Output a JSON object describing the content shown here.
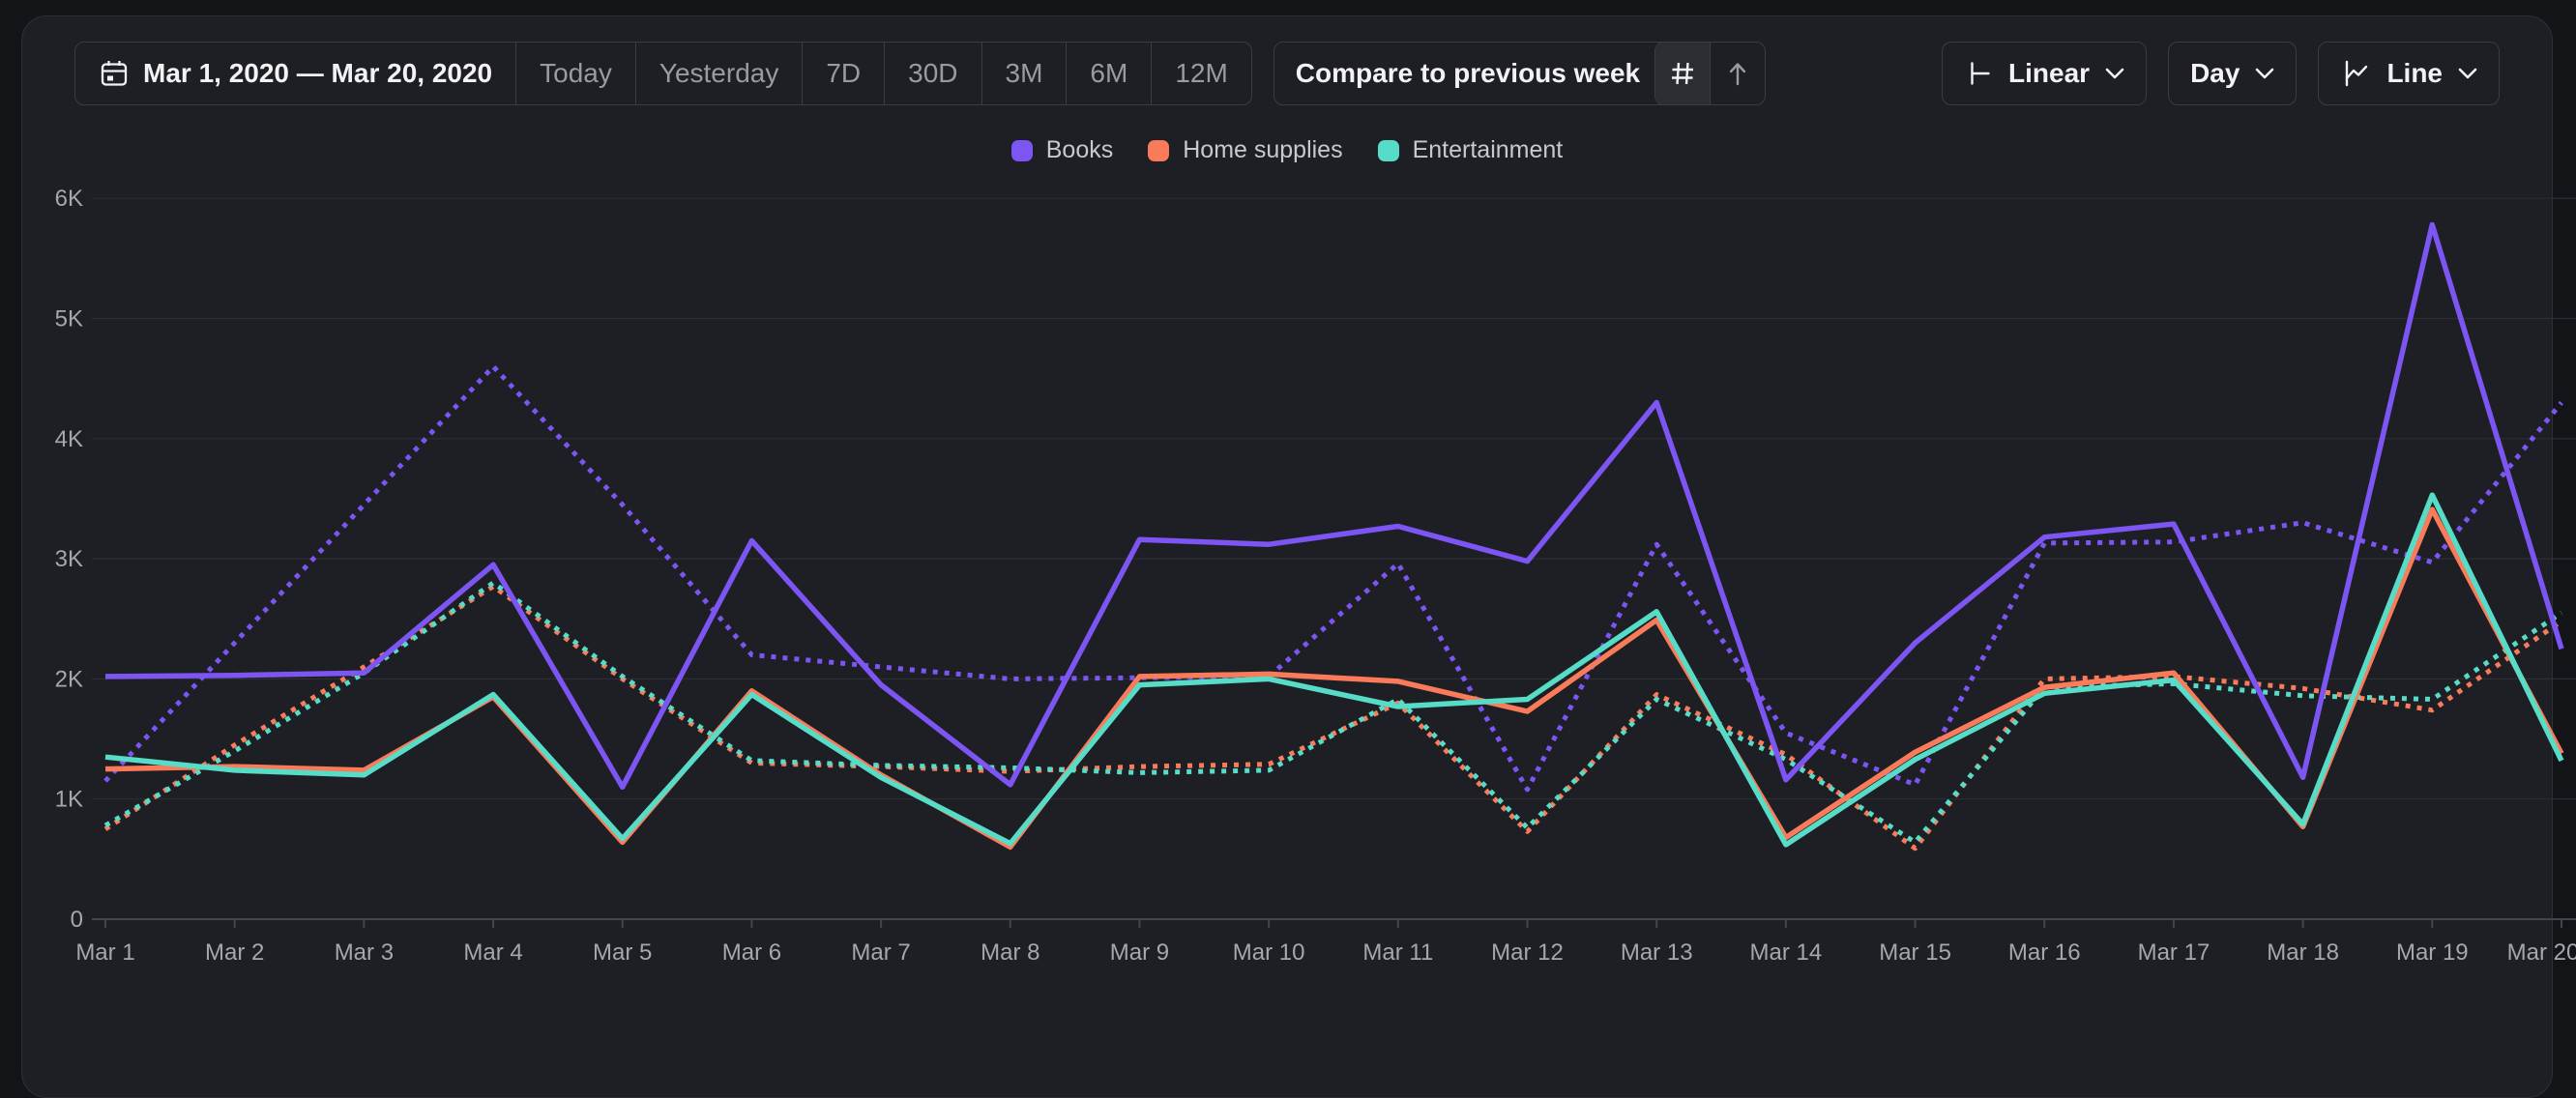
{
  "toolbar": {
    "date_range": "Mar 1, 2020 — Mar 20, 2020",
    "presets": [
      "Today",
      "Yesterday",
      "7D",
      "30D",
      "3M",
      "6M",
      "12M"
    ],
    "compare_label": "Compare to previous week",
    "compare_close_icon": "circle-x",
    "view_icons": [
      "grid",
      "arrow-up"
    ],
    "view_active": "grid",
    "scale_label": "Linear",
    "scale_icon": "axis",
    "interval_label": "Day",
    "chart_type_label": "Line",
    "chart_type_icon": "line-chart",
    "chevron_icon": "chevron-down",
    "calendar_icon": "calendar"
  },
  "legend": {
    "items": [
      {
        "label": "Books",
        "color": "#7c55f3"
      },
      {
        "label": "Home supplies",
        "color": "#fa7b59"
      },
      {
        "label": "Entertainment",
        "color": "#57dcc8"
      }
    ]
  },
  "colors": {
    "page_bg": "#131418",
    "panel_bg": "#1d1f24",
    "panel_border": "#2e3035",
    "grid_line": "#2d2f34",
    "axis_line": "#43454b",
    "axis_text": "#a6a7ac",
    "muted_text": "#9a9ba1",
    "bright_text": "#f2f2f4"
  },
  "chart_data": {
    "type": "line",
    "title": "",
    "xlabel": "",
    "ylabel": "",
    "grid": true,
    "legend_position": "top",
    "ylim": [
      0,
      6200
    ],
    "yticks": [
      0,
      1000,
      2000,
      3000,
      4000,
      5000,
      6000
    ],
    "ytick_labels": [
      "0",
      "1K",
      "2K",
      "3K",
      "4K",
      "5K",
      "6K"
    ],
    "categories": [
      "Mar 1",
      "Mar 2",
      "Mar 3",
      "Mar 4",
      "Mar 5",
      "Mar 6",
      "Mar 7",
      "Mar 8",
      "Mar 9",
      "Mar 10",
      "Mar 11",
      "Mar 12",
      "Mar 13",
      "Mar 14",
      "Mar 15",
      "Mar 16",
      "Mar 17",
      "Mar 18",
      "Mar 19",
      "Mar 20"
    ],
    "series": [
      {
        "name": "Home supplies (previous week)",
        "color": "#fa7b59",
        "style": "dotted",
        "values": [
          750,
          1450,
          2100,
          2770,
          2000,
          1300,
          1270,
          1230,
          1270,
          1290,
          1800,
          730,
          1870,
          1370,
          590,
          2000,
          2020,
          1920,
          1740,
          2480
        ]
      },
      {
        "name": "Entertainment (previous week)",
        "color": "#57dcc8",
        "style": "dotted",
        "values": [
          780,
          1400,
          2050,
          2800,
          2020,
          1320,
          1280,
          1260,
          1220,
          1240,
          1830,
          760,
          1830,
          1330,
          640,
          1930,
          1960,
          1860,
          1830,
          2550
        ]
      },
      {
        "name": "Books (previous week)",
        "color": "#7c55f3",
        "style": "dotted",
        "values": [
          1150,
          2300,
          3450,
          4600,
          3450,
          2200,
          2100,
          2000,
          2010,
          2020,
          2960,
          1080,
          3120,
          1550,
          1120,
          3130,
          3140,
          3300,
          2970,
          4300
        ]
      },
      {
        "name": "Home supplies",
        "color": "#fa7b59",
        "style": "solid",
        "values": [
          1250,
          1270,
          1240,
          1850,
          640,
          1900,
          1200,
          600,
          2020,
          2040,
          1980,
          1730,
          2490,
          680,
          1390,
          1930,
          2050,
          770,
          3410,
          1380
        ]
      },
      {
        "name": "Entertainment",
        "color": "#57dcc8",
        "style": "solid",
        "values": [
          1350,
          1240,
          1200,
          1870,
          670,
          1870,
          1180,
          630,
          1950,
          2000,
          1770,
          1830,
          2560,
          620,
          1330,
          1880,
          1990,
          790,
          3530,
          1320
        ]
      },
      {
        "name": "Books",
        "color": "#7c55f3",
        "style": "solid",
        "values": [
          2020,
          2030,
          2050,
          2950,
          1100,
          3150,
          1950,
          1120,
          3160,
          3120,
          3270,
          2980,
          4300,
          1160,
          2300,
          3180,
          3290,
          1180,
          5780,
          2250
        ]
      }
    ]
  }
}
